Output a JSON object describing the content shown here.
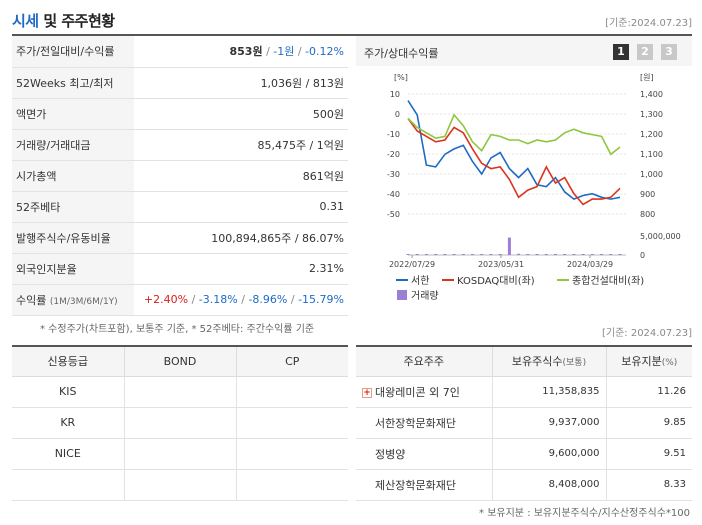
{
  "header": {
    "title_accent": "시세",
    "title_rest": " 및 주주현황",
    "date": "[기준:2024.07.23]"
  },
  "market": {
    "rows": [
      {
        "label": "주가/전일대비/수익률"
      },
      {
        "label": "52Weeks 최고/최저",
        "value": "1,036원 / 813원"
      },
      {
        "label": "액면가",
        "value": "500원"
      },
      {
        "label": "거래량/거래대금",
        "value": "85,475주 / 1억원"
      },
      {
        "label": "시가총액",
        "value": "861억원"
      },
      {
        "label": "52주베타",
        "value": "0.31"
      },
      {
        "label": "발행주식수/유동비율",
        "value": "100,894,865주 / 86.07%"
      },
      {
        "label": "외국인지분율",
        "value": "2.31%"
      }
    ],
    "price": "853원",
    "sep1": " / ",
    "change": "-1원",
    "sep2": " / ",
    "change_pct": "-0.12%",
    "returns_label": "수익률",
    "returns_period": "(1M/3M/6M/1Y)",
    "returns": [
      "+2.40%",
      "-3.18%",
      "-8.96%",
      "-15.79%"
    ],
    "returns_sep": "/",
    "footnote": "* 수정주가(차트포함), 보통주 기준, * 52주베타: 주간수익률 기준"
  },
  "chart_panel": {
    "title": "주가/상대수익률",
    "tabs": [
      "1",
      "2",
      "3"
    ],
    "active_tab": "1",
    "colors": {
      "stock": "#1f6bc4",
      "kosdaq": "#d9341e",
      "sector": "#8ec63f",
      "volume": "#9b7fd4",
      "tab_active": "#333333",
      "tab_inactive": "#c8c8c8"
    }
  },
  "chart_data": {
    "type": "line",
    "left_axis_unit": "[%]",
    "right_axis_unit": "[원]",
    "left_ticks": [
      "10",
      "0",
      "-10",
      "-20",
      "-30",
      "-40",
      "-50"
    ],
    "right_ticks": [
      "1,400",
      "1,300",
      "1,200",
      "1,100",
      "1,000",
      "900",
      "800"
    ],
    "volume_ticks": [
      "5,000,000",
      "0"
    ],
    "x_ticks": [
      "2022/07/29",
      "2023/05/31",
      "2024/03/29"
    ],
    "ylim_left": [
      -55,
      12
    ],
    "ylim_volume": [
      0,
      7000000
    ],
    "series": [
      {
        "name": "서한",
        "axis": "left",
        "values": [
          10,
          2,
          -26,
          -27,
          -20,
          -17,
          -15,
          -24,
          -31,
          -22,
          -19,
          -28,
          -33,
          -28,
          -37,
          -38,
          -33,
          -41,
          -45,
          -43,
          -42,
          -44,
          -45,
          -44
        ]
      },
      {
        "name": "KOSDAQ대비(좌)",
        "axis": "left",
        "values": [
          0,
          -7,
          -10,
          -13,
          -12,
          -5,
          -8,
          -17,
          -25,
          -28,
          -27,
          -34,
          -44,
          -40,
          -38,
          -27,
          -36,
          -33,
          -42,
          -48,
          -45,
          -45,
          -44,
          -39
        ]
      },
      {
        "name": "종합건설대비(좌)",
        "axis": "left",
        "values": [
          0,
          -5,
          -8,
          -11,
          -10,
          2,
          -4,
          -13,
          -18,
          -9,
          -10,
          -12,
          -12,
          -14,
          -12,
          -13,
          -12,
          -8,
          -6,
          -8,
          -9,
          -10,
          -20,
          -16
        ]
      },
      {
        "name": "거래량",
        "axis": "volume",
        "values": [
          100000,
          150000,
          200000,
          150000,
          100000,
          200000,
          150000,
          100000,
          120000,
          150000,
          100000,
          4200000,
          300000,
          150000,
          100000,
          80000,
          100000,
          120000,
          80000,
          60000,
          100000,
          80000,
          50000,
          60000
        ]
      }
    ]
  },
  "credit": {
    "headers": [
      "신용등급",
      "BOND",
      "CP"
    ],
    "rows": [
      {
        "agency": "KIS",
        "bond": "",
        "cp": ""
      },
      {
        "agency": "KR",
        "bond": "",
        "cp": ""
      },
      {
        "agency": "NICE",
        "bond": "",
        "cp": ""
      },
      {
        "agency": "",
        "bond": "",
        "cp": ""
      }
    ]
  },
  "holders": {
    "date": "[기준: 2024.07.23]",
    "header_name": "주요주주",
    "header_shares": "보유주식수",
    "header_shares_unit": "(보통)",
    "header_ratio": "보유지분",
    "header_ratio_unit": "(%)",
    "rows": [
      {
        "name": "대왕레미콘 외 7인",
        "shares": "11,358,835",
        "ratio": "11.26",
        "expandable": true
      },
      {
        "name": "서한장학문화재단",
        "shares": "9,937,000",
        "ratio": "9.85"
      },
      {
        "name": "정병양",
        "shares": "9,600,000",
        "ratio": "9.51"
      },
      {
        "name": "제산장학문화재단",
        "shares": "8,408,000",
        "ratio": "8.33"
      }
    ],
    "expand_glyph": "+",
    "footnote": "* 보유지분 : 보유지분주식수/지수산정주식수*100"
  }
}
